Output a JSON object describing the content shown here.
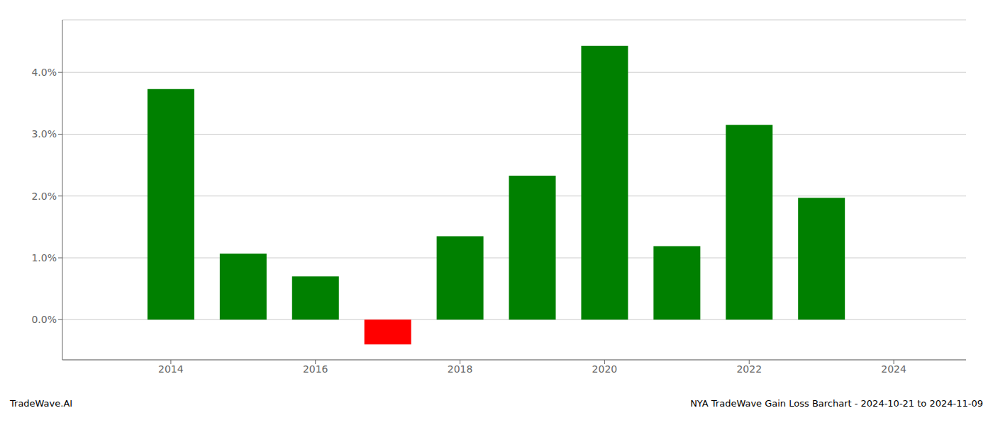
{
  "chart_data": {
    "type": "bar",
    "x": [
      2014,
      2015,
      2016,
      2017,
      2018,
      2019,
      2020,
      2021,
      2022,
      2023
    ],
    "values": [
      3.73,
      1.07,
      0.7,
      -0.4,
      1.35,
      2.33,
      4.43,
      1.19,
      3.15,
      1.97
    ],
    "colors": [
      "#008000",
      "#008000",
      "#008000",
      "#ff0000",
      "#008000",
      "#008000",
      "#008000",
      "#008000",
      "#008000",
      "#008000"
    ],
    "xlim": [
      2012.5,
      2025.0
    ],
    "xticks": [
      2014,
      2016,
      2018,
      2020,
      2022,
      2024
    ],
    "ylim": [
      -0.65,
      4.85
    ],
    "yticks": [
      {
        "value": 0.0,
        "label": "0.0%"
      },
      {
        "value": 1.0,
        "label": "1.0%"
      },
      {
        "value": 2.0,
        "label": "2.0%"
      },
      {
        "value": 3.0,
        "label": "3.0%"
      },
      {
        "value": 4.0,
        "label": "4.0%"
      }
    ],
    "grid": true,
    "annotations": [
      "TradeWave.AI",
      "NYA TradeWave Gain Loss Barchart - 2024-10-21 to 2024-11-09"
    ]
  }
}
